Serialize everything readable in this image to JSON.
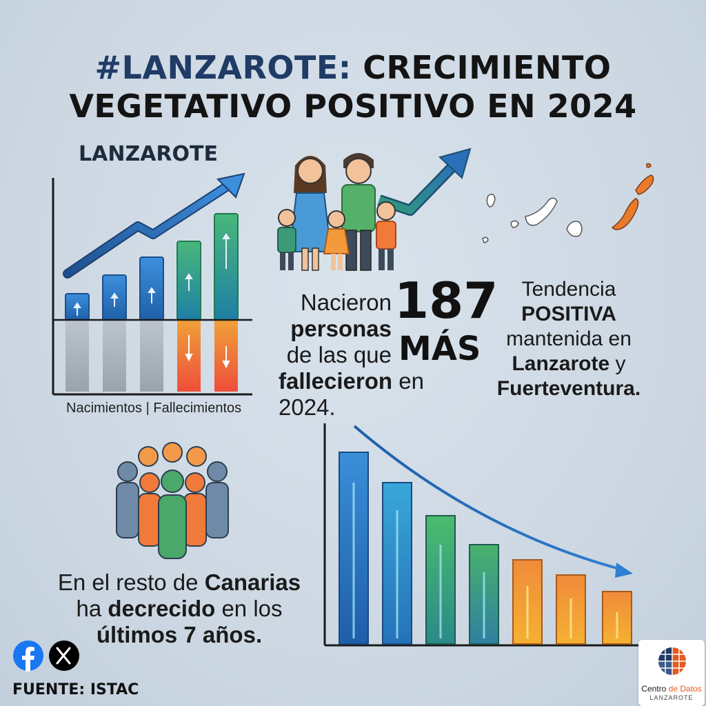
{
  "header": {
    "hashtag": "#LANZAROTE:",
    "title_line1_rest": "CRECIMIENTO",
    "title_line2": "VEGETATIVO POSITIVO EN 2024"
  },
  "left_chart": {
    "title": "LANZAROTE",
    "axis_label": "Nacimientos | Fallecimientos"
  },
  "stat": {
    "line1": "Nacieron",
    "line2": "personas",
    "line3": "de las que",
    "line4_bold": "fallecieron",
    "line4_rest": "en 2024.",
    "number": "187",
    "number_word": "MÁS"
  },
  "trend": {
    "line1": "Tendencia",
    "line2": "POSITIVA",
    "line3": "mantenida en",
    "line4_bold": "Lanzarote",
    "line4_rest": "y",
    "line5": "Fuerteventura."
  },
  "canarias": {
    "line1_pre": "En el resto de",
    "line1_bold": "Canarias",
    "line2_pre": "ha",
    "line2_bold": "decrecido",
    "line2_rest": "en los",
    "line3": "últimos 7 años."
  },
  "footer": {
    "source": "FUENTE: ISTAC",
    "logo_line1_a": "Centro",
    "logo_line1_b": "de Datos",
    "logo_line2": "LANZAROTE"
  },
  "social": {
    "facebook": "facebook-icon",
    "x": "x-icon"
  },
  "colors": {
    "blue": "#2b7fd0",
    "green": "#3cae6a",
    "orange": "#f07a2f",
    "dark_navy": "#1f3b66"
  }
}
